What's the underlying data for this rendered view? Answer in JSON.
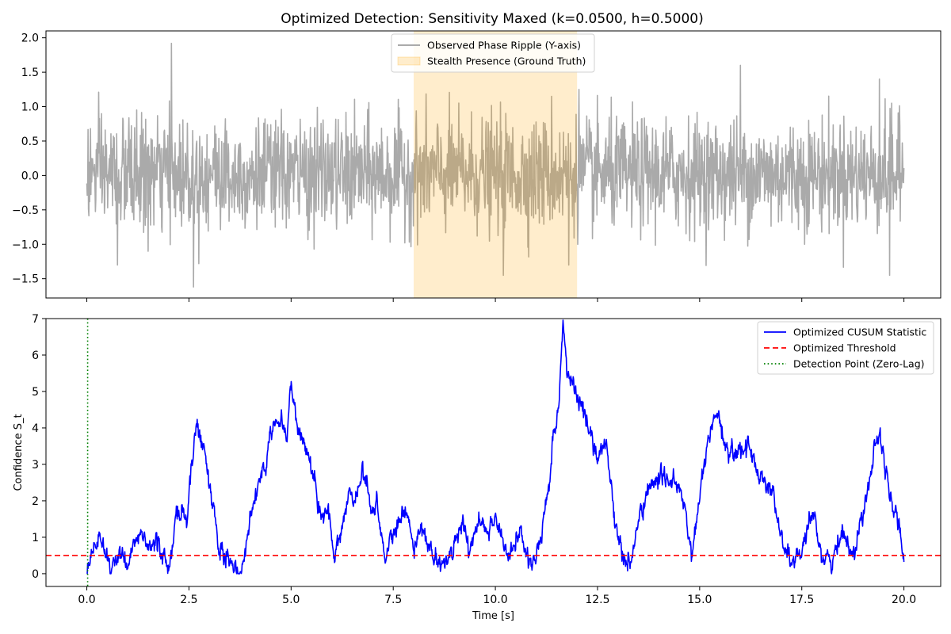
{
  "figure": {
    "title": "Optimized Detection: Sensitivity Maxed (k=0.0500, h=0.5000)"
  },
  "chart_data": [
    {
      "type": "line",
      "title": "Optimized Detection: Sensitivity Maxed (k=0.0500, h=0.5000)",
      "xlabel": "",
      "ylabel": "",
      "xlim": [
        -1.0,
        20.9
      ],
      "ylim": [
        -1.78,
        2.1
      ],
      "xticks": [
        0.0,
        2.5,
        5.0,
        7.5,
        10.0,
        12.5,
        15.0,
        17.5,
        20.0
      ],
      "xtick_labels_visible": false,
      "yticks": [
        -1.5,
        -1.0,
        -0.5,
        0.0,
        0.5,
        1.0,
        1.5,
        2.0
      ],
      "ytick_labels": [
        "−1.5",
        "−1.0",
        "−0.5",
        "0.0",
        "0.5",
        "1.0",
        "1.5",
        "2.0"
      ],
      "grid": false,
      "legend_position": "top-center",
      "colors": {
        "signal": "#aaaaaa",
        "band": "#ffe5b4"
      },
      "legend": [
        {
          "label": "Observed Phase Ripple (Y-axis)",
          "style": "line",
          "color": "#aaaaaa"
        },
        {
          "label": "Stealth Presence (Ground Truth)",
          "style": "patch",
          "color": "#ffe5b4"
        }
      ],
      "shaded_region": {
        "x0": 8.0,
        "x1": 12.0,
        "label": "Stealth Presence (Ground Truth)"
      },
      "series": [
        {
          "name": "Observed Phase Ripple (Y-axis)",
          "x_start": 0.0,
          "x_end": 20.0,
          "n_points": 2000,
          "noise_std": 0.4,
          "range_observed": [
            -1.62,
            1.92
          ],
          "notable_peaks": [
            [
              2.07,
              1.92
            ],
            [
              11.38,
              1.15
            ],
            [
              12.05,
              1.25
            ],
            [
              16.0,
              1.6
            ],
            [
              19.4,
              1.4
            ],
            [
              19.7,
              1.05
            ]
          ],
          "notable_troughs": [
            [
              2.61,
              -1.62
            ],
            [
              0.75,
              -1.3
            ],
            [
              10.2,
              -1.45
            ],
            [
              11.8,
              -1.3
            ],
            [
              19.65,
              -1.45
            ],
            [
              1.5,
              -1.1
            ]
          ]
        }
      ]
    },
    {
      "type": "line",
      "title": "",
      "xlabel": "Time [s]",
      "ylabel": "Confidence S_t",
      "xlim": [
        -1.0,
        20.9
      ],
      "ylim": [
        -0.35,
        7.0
      ],
      "xticks": [
        0.0,
        2.5,
        5.0,
        7.5,
        10.0,
        12.5,
        15.0,
        17.5,
        20.0
      ],
      "xtick_labels": [
        "0.0",
        "2.5",
        "5.0",
        "7.5",
        "10.0",
        "12.5",
        "15.0",
        "17.5",
        "20.0"
      ],
      "yticks": [
        0,
        1,
        2,
        3,
        4,
        5,
        6,
        7
      ],
      "ytick_labels": [
        "0",
        "1",
        "2",
        "3",
        "4",
        "5",
        "6",
        "7"
      ],
      "grid": false,
      "legend_position": "top-right",
      "colors": {
        "cusum": "#0000ff",
        "threshold": "#ff0000",
        "detection": "#008000"
      },
      "legend": [
        {
          "label": "Optimized CUSUM Statistic",
          "style": "solid",
          "color": "#0000ff"
        },
        {
          "label": "Optimized Threshold",
          "style": "dashed",
          "color": "#ff0000"
        },
        {
          "label": "Detection Point (Zero-Lag)",
          "style": "dotted",
          "color": "#008000"
        }
      ],
      "threshold": 0.5,
      "detection_x": 0.02,
      "series": [
        {
          "name": "Optimized CUSUM Statistic",
          "anchors": [
            [
              0.0,
              0.0
            ],
            [
              0.3,
              1.0
            ],
            [
              0.6,
              0.2
            ],
            [
              0.8,
              0.6
            ],
            [
              1.0,
              0.1
            ],
            [
              1.3,
              1.2
            ],
            [
              1.5,
              0.6
            ],
            [
              1.7,
              1.0
            ],
            [
              1.9,
              0.3
            ],
            [
              2.0,
              0.0
            ],
            [
              2.2,
              1.7
            ],
            [
              2.45,
              1.5
            ],
            [
              2.55,
              3.0
            ],
            [
              2.7,
              4.0
            ],
            [
              2.9,
              3.3
            ],
            [
              3.1,
              1.8
            ],
            [
              3.25,
              0.5
            ],
            [
              3.45,
              0.4
            ],
            [
              3.7,
              0.1
            ],
            [
              3.8,
              0.2
            ],
            [
              4.0,
              1.4
            ],
            [
              4.2,
              2.7
            ],
            [
              4.4,
              3.0
            ],
            [
              4.5,
              4.0
            ],
            [
              4.7,
              4.3
            ],
            [
              4.9,
              3.8
            ],
            [
              5.0,
              5.3
            ],
            [
              5.15,
              4.0
            ],
            [
              5.35,
              3.5
            ],
            [
              5.5,
              3.0
            ],
            [
              5.7,
              1.6
            ],
            [
              5.9,
              1.7
            ],
            [
              6.05,
              0.5
            ],
            [
              6.2,
              0.9
            ],
            [
              6.4,
              2.2
            ],
            [
              6.6,
              2.1
            ],
            [
              6.75,
              2.9
            ],
            [
              6.85,
              2.5
            ],
            [
              7.0,
              1.6
            ],
            [
              7.1,
              2.0
            ],
            [
              7.3,
              0.5
            ],
            [
              7.5,
              1.0
            ],
            [
              7.65,
              1.4
            ],
            [
              7.8,
              1.8
            ],
            [
              8.0,
              0.6
            ],
            [
              8.2,
              1.4
            ],
            [
              8.45,
              0.5
            ],
            [
              8.75,
              0.2
            ],
            [
              9.0,
              0.8
            ],
            [
              9.2,
              1.5
            ],
            [
              9.35,
              0.5
            ],
            [
              9.6,
              1.5
            ],
            [
              9.8,
              1.2
            ],
            [
              10.0,
              1.6
            ],
            [
              10.3,
              0.4
            ],
            [
              10.6,
              1.1
            ],
            [
              10.85,
              0.3
            ],
            [
              11.0,
              0.4
            ],
            [
              11.2,
              1.5
            ],
            [
              11.4,
              3.5
            ],
            [
              11.55,
              4.5
            ],
            [
              11.65,
              6.6
            ],
            [
              11.8,
              5.5
            ],
            [
              11.95,
              5.0
            ],
            [
              12.2,
              4.3
            ],
            [
              12.5,
              3.2
            ],
            [
              12.7,
              3.7
            ],
            [
              12.9,
              1.7
            ],
            [
              13.1,
              0.5
            ],
            [
              13.3,
              0.2
            ],
            [
              13.5,
              1.4
            ],
            [
              13.7,
              2.2
            ],
            [
              13.9,
              2.5
            ],
            [
              14.2,
              2.7
            ],
            [
              14.4,
              2.5
            ],
            [
              14.65,
              1.8
            ],
            [
              14.8,
              0.4
            ],
            [
              14.95,
              1.6
            ],
            [
              15.1,
              3.0
            ],
            [
              15.35,
              4.3
            ],
            [
              15.5,
              4.0
            ],
            [
              15.7,
              3.3
            ],
            [
              15.95,
              3.4
            ],
            [
              16.2,
              3.5
            ],
            [
              16.4,
              2.8
            ],
            [
              16.6,
              2.6
            ],
            [
              16.8,
              2.2
            ],
            [
              17.0,
              0.9
            ],
            [
              17.25,
              0.3
            ],
            [
              17.5,
              0.6
            ],
            [
              17.8,
              1.6
            ],
            [
              18.0,
              0.5
            ],
            [
              18.25,
              0.3
            ],
            [
              18.5,
              1.2
            ],
            [
              18.8,
              0.5
            ],
            [
              19.0,
              1.8
            ],
            [
              19.2,
              2.9
            ],
            [
              19.35,
              4.0
            ],
            [
              19.5,
              3.4
            ],
            [
              19.65,
              2.0
            ],
            [
              19.85,
              1.6
            ],
            [
              20.0,
              0.3
            ]
          ]
        }
      ]
    }
  ]
}
